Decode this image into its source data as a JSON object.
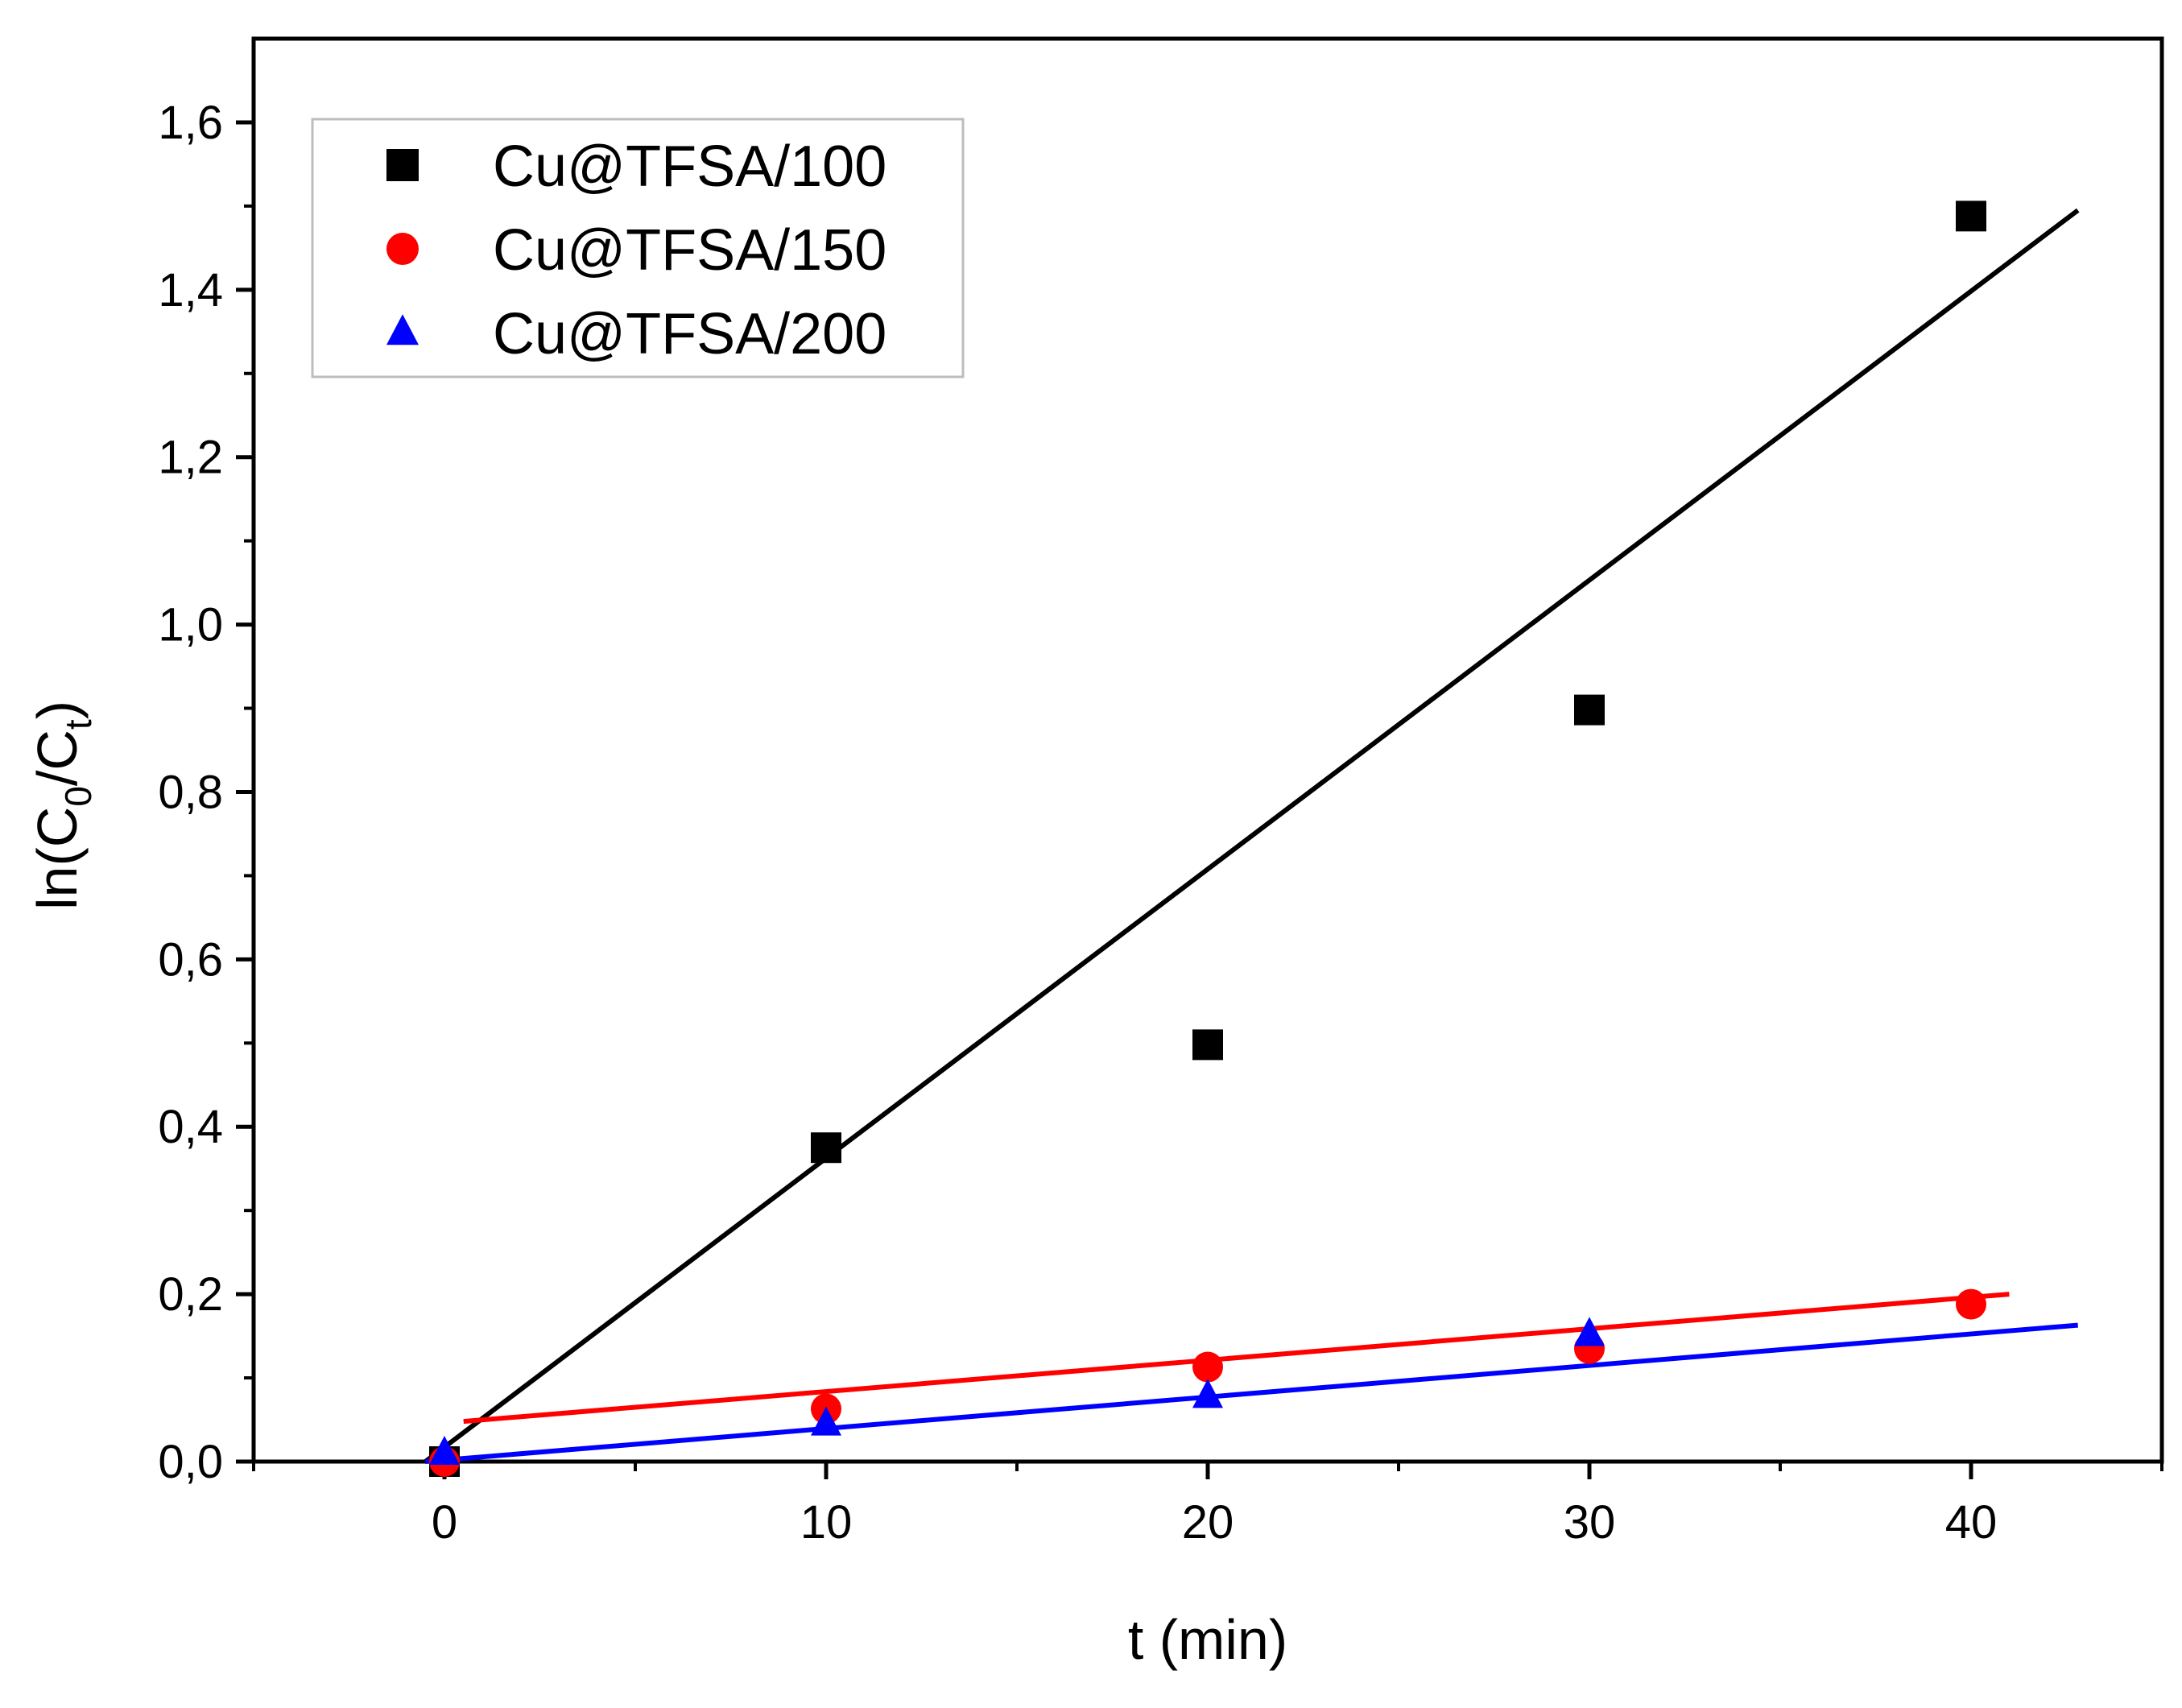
{
  "chart_data": {
    "type": "scatter",
    "title": "",
    "xlabel": "t (min)",
    "ylabel_parts": {
      "prefix": "ln(C",
      "sub0": "0",
      "mid": "/C",
      "subt": "t",
      "suffix": ")"
    },
    "xlim": [
      -5,
      45
    ],
    "ylim": [
      0,
      1.7
    ],
    "xticks": [
      0,
      10,
      20,
      30,
      40
    ],
    "xtick_labels": [
      "0",
      "10",
      "20",
      "30",
      "40"
    ],
    "yticks": [
      0,
      0.2,
      0.4,
      0.6,
      0.8,
      1.0,
      1.2,
      1.4,
      1.6
    ],
    "ytick_labels": [
      "0,0",
      "0,2",
      "0,4",
      "0,6",
      "0,8",
      "1,0",
      "1,2",
      "1,4",
      "1,6"
    ],
    "grid": false,
    "legend_position": "top-left",
    "series": [
      {
        "name": "Cu@TFSA/100",
        "marker": "square",
        "color": "#000000",
        "x": [
          0,
          10,
          20,
          30,
          40
        ],
        "y": [
          0.0,
          0.375,
          0.498,
          0.898,
          1.488
        ],
        "fit": {
          "x0": -0.5,
          "y0": 0.0,
          "x1": 42.8,
          "y1": 1.495
        }
      },
      {
        "name": "Cu@TFSA/150",
        "marker": "circle",
        "color": "#ff0000",
        "x": [
          0,
          10,
          20,
          30,
          40
        ],
        "y": [
          0.0,
          0.063,
          0.113,
          0.135,
          0.188
        ],
        "fit": {
          "x0": 0.5,
          "y0": 0.048,
          "x1": 41.0,
          "y1": 0.2
        }
      },
      {
        "name": "Cu@TFSA/200",
        "marker": "triangle",
        "color": "#0000ff",
        "x": [
          0,
          10,
          20,
          30,
          40
        ],
        "y": [
          0.01,
          0.045,
          0.078,
          0.152,
          null
        ],
        "fit": {
          "x0": -0.5,
          "y0": 0.0,
          "x1": 42.8,
          "y1": 0.163
        }
      }
    ]
  }
}
